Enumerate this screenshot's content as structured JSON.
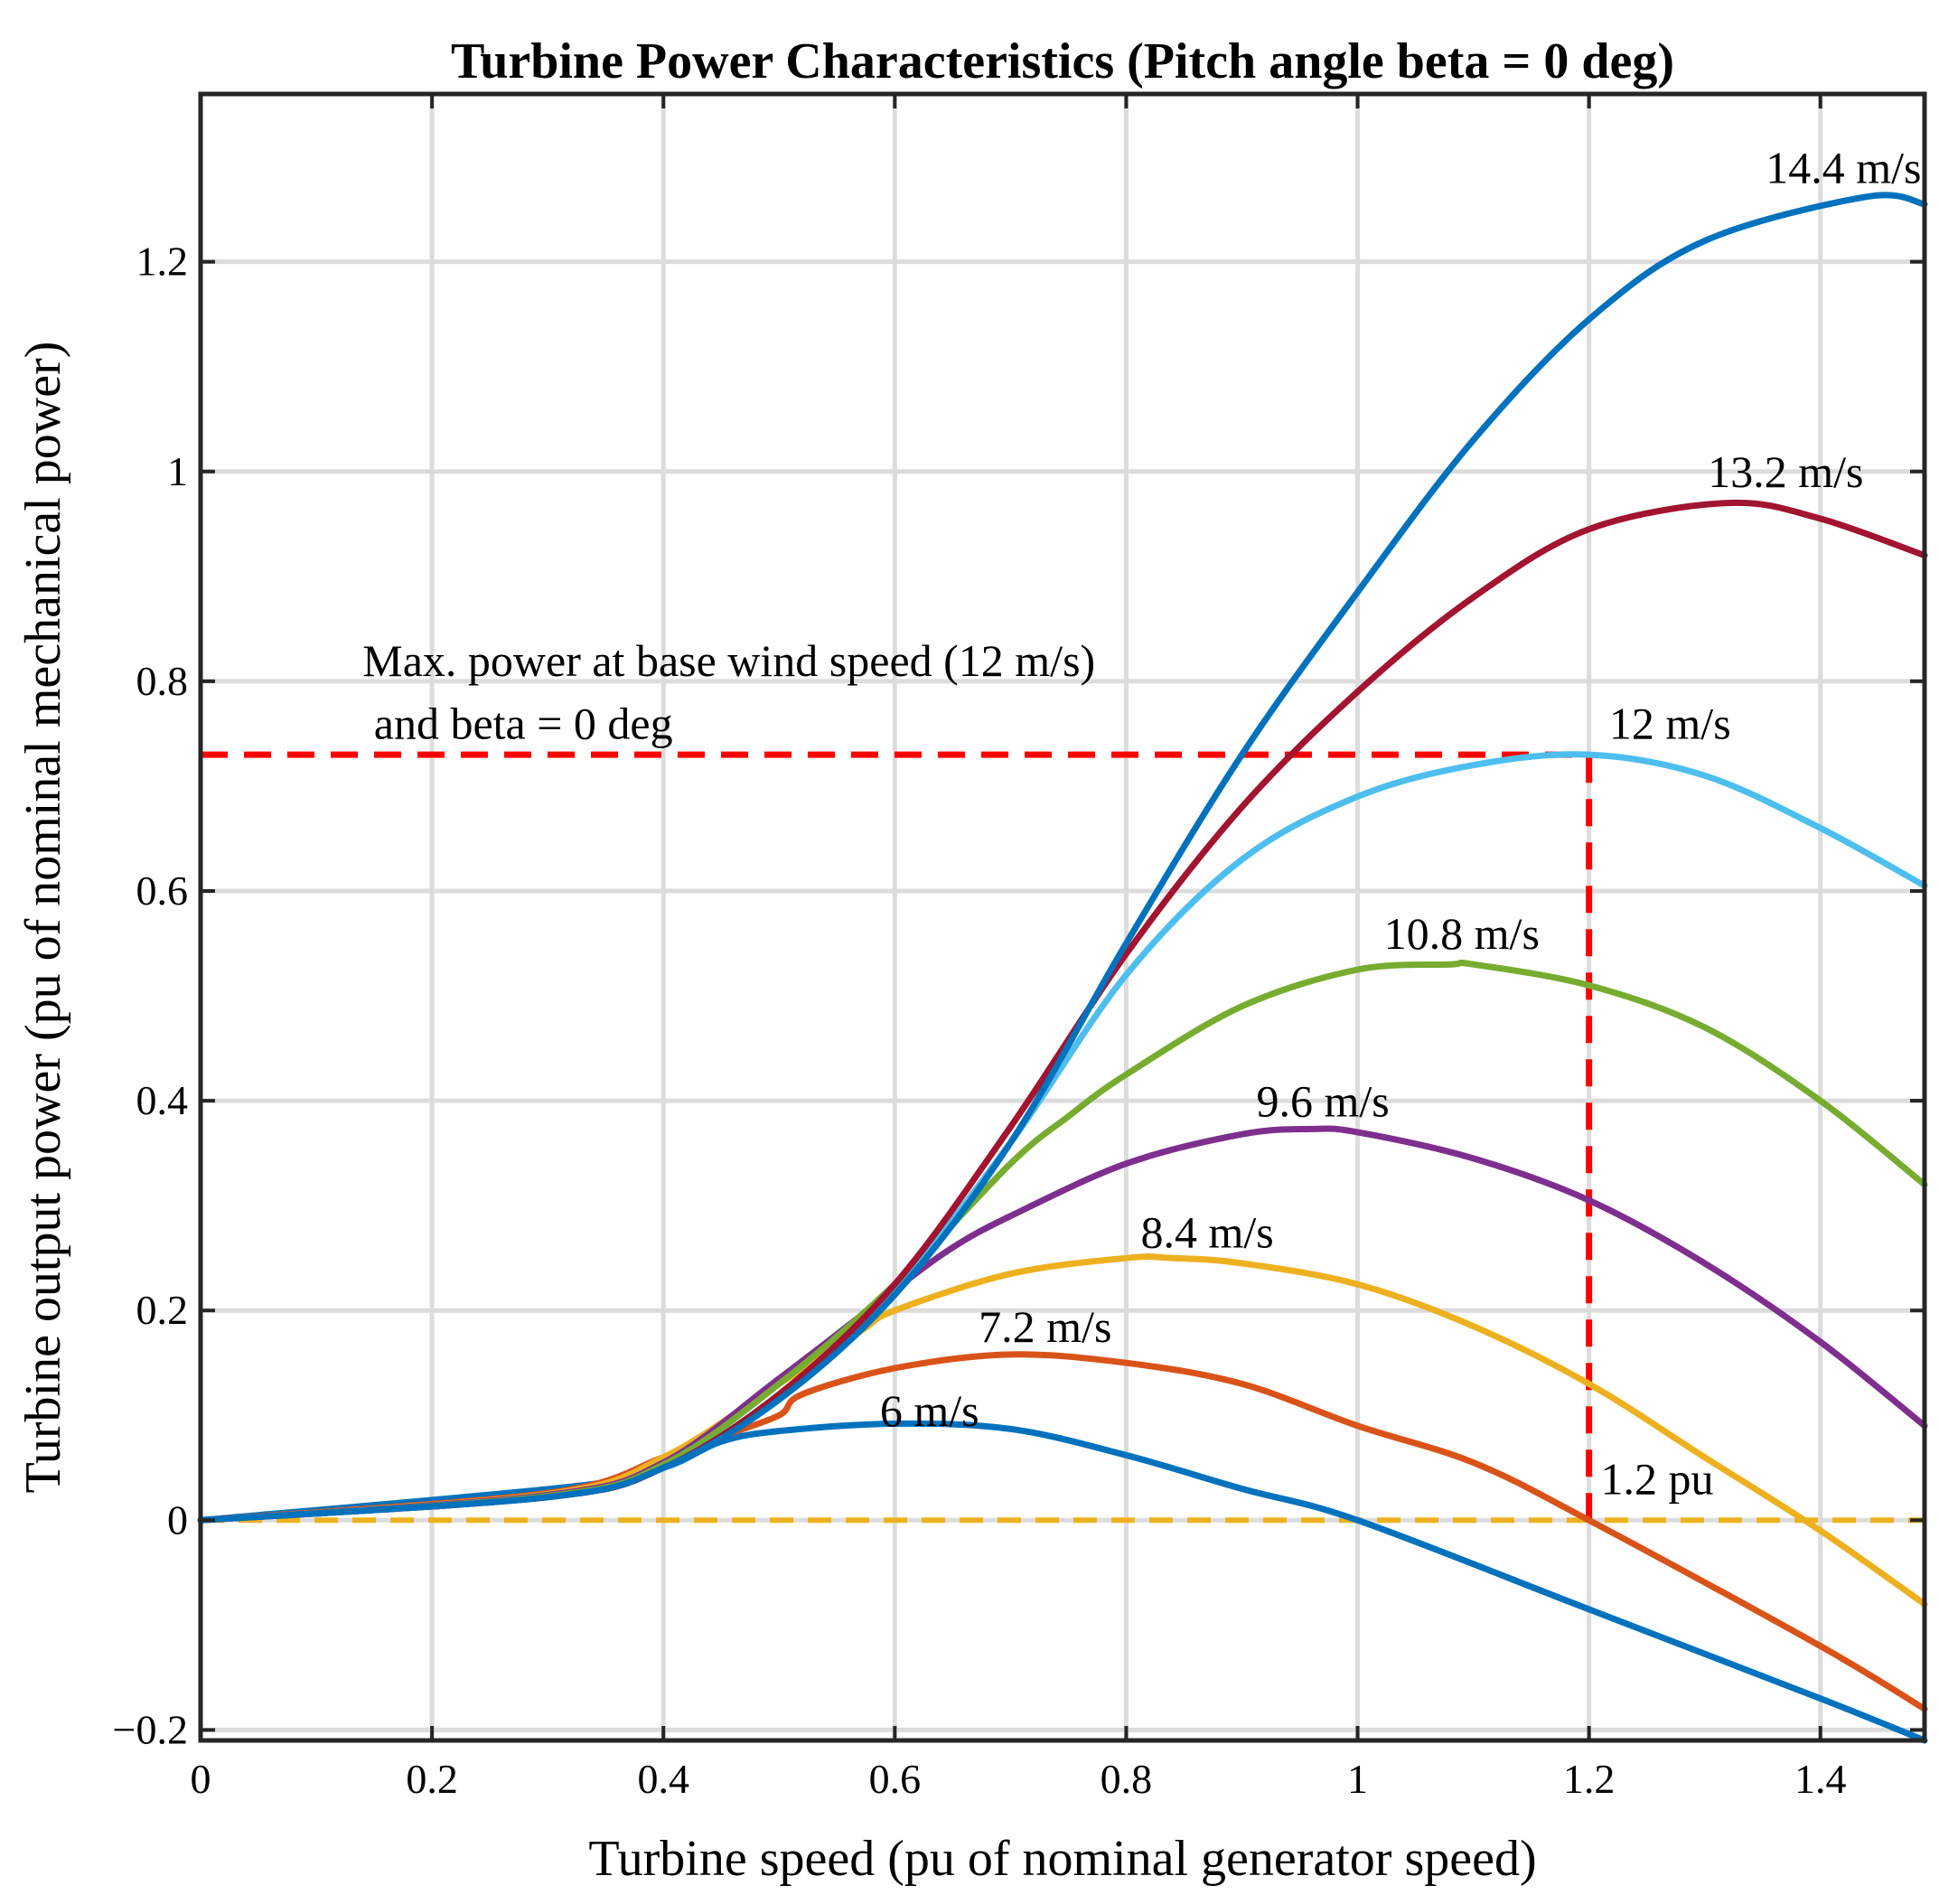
{
  "chart_data": {
    "type": "line",
    "title": "Turbine Power Characteristics (Pitch angle beta = 0 deg)",
    "xlabel": "Turbine speed (pu of nominal generator speed)",
    "ylabel": "Turbine output power (pu of nominal mechanical power)",
    "xlim": [
      0,
      1.49
    ],
    "ylim": [
      -0.21,
      1.36
    ],
    "x_ticks": [
      0,
      0.2,
      0.4,
      0.6,
      0.8,
      1,
      1.2,
      1.4
    ],
    "x_tick_labels": [
      "0",
      "0.2",
      "0.4",
      "0.6",
      "0.8",
      "1",
      "1.2",
      "1.4"
    ],
    "y_ticks": [
      -0.2,
      0,
      0.2,
      0.4,
      0.6,
      0.8,
      1,
      1.2
    ],
    "y_tick_labels": [
      "−0.2",
      "0",
      "0.2",
      "0.4",
      "0.6",
      "0.8",
      "1",
      "1.2"
    ],
    "grid": true,
    "series": [
      {
        "name": "6 m/s",
        "color": "#0072BD",
        "x": [
          0,
          0.32,
          0.4,
          0.45,
          0.5,
          0.6,
          0.7,
          0.8,
          0.9,
          1.0,
          1.2,
          1.4,
          1.49
        ],
        "y": [
          0,
          0.032,
          0.05,
          0.075,
          0.085,
          0.092,
          0.087,
          0.062,
          0.03,
          0.0,
          -0.085,
          -0.17,
          -0.21
        ]
      },
      {
        "name": "7.2 m/s",
        "color": "#D95319",
        "x": [
          0,
          0.3,
          0.4,
          0.45,
          0.5,
          0.52,
          0.6,
          0.7,
          0.8,
          0.9,
          1.0,
          1.1,
          1.2,
          1.4,
          1.49
        ],
        "y": [
          0,
          0.026,
          0.06,
          0.08,
          0.1,
          0.12,
          0.145,
          0.158,
          0.15,
          0.13,
          0.09,
          0.055,
          0.0,
          -0.12,
          -0.18
        ]
      },
      {
        "name": "8.4 m/s",
        "color": "#EDB120",
        "x": [
          0,
          0.3,
          0.4,
          0.5,
          0.57,
          0.6,
          0.7,
          0.8,
          0.84,
          0.9,
          1.0,
          1.1,
          1.2,
          1.3,
          1.4,
          1.49
        ],
        "y": [
          0,
          0.025,
          0.06,
          0.13,
          0.18,
          0.2,
          0.235,
          0.25,
          0.25,
          0.245,
          0.225,
          0.185,
          0.13,
          0.06,
          -0.01,
          -0.08
        ]
      },
      {
        "name": "9.6 m/s",
        "color": "#7E2F8E",
        "x": [
          0,
          0.3,
          0.4,
          0.5,
          0.6,
          0.65,
          0.7,
          0.8,
          0.9,
          0.96,
          1.0,
          1.1,
          1.2,
          1.3,
          1.4,
          1.49
        ],
        "y": [
          0,
          0.024,
          0.055,
          0.135,
          0.22,
          0.26,
          0.29,
          0.34,
          0.368,
          0.373,
          0.37,
          0.345,
          0.305,
          0.245,
          0.17,
          0.09
        ]
      },
      {
        "name": "10.8 m/s",
        "color": "#77AC30",
        "x": [
          0,
          0.3,
          0.4,
          0.5,
          0.6,
          0.7,
          0.75,
          0.8,
          0.9,
          1.0,
          1.08,
          1.1,
          1.2,
          1.3,
          1.4,
          1.49
        ],
        "y": [
          0,
          0.023,
          0.053,
          0.13,
          0.225,
          0.34,
          0.385,
          0.425,
          0.49,
          0.525,
          0.53,
          0.53,
          0.51,
          0.47,
          0.4,
          0.32
        ]
      },
      {
        "name": "12 m/s",
        "color": "#4DBEEE",
        "x": [
          0,
          0.3,
          0.4,
          0.5,
          0.6,
          0.7,
          0.8,
          0.9,
          1.0,
          1.1,
          1.2,
          1.3,
          1.4,
          1.49
        ],
        "y": [
          0,
          0.022,
          0.05,
          0.12,
          0.22,
          0.36,
          0.52,
          0.63,
          0.69,
          0.72,
          0.73,
          0.71,
          0.66,
          0.605
        ]
      },
      {
        "name": "13.2 m/s",
        "color": "#A2142F",
        "x": [
          0,
          0.3,
          0.4,
          0.5,
          0.6,
          0.7,
          0.8,
          0.9,
          1.0,
          1.1,
          1.2,
          1.32,
          1.4,
          1.49
        ],
        "y": [
          0,
          0.022,
          0.05,
          0.12,
          0.225,
          0.375,
          0.54,
          0.68,
          0.79,
          0.88,
          0.945,
          0.97,
          0.955,
          0.92
        ]
      },
      {
        "name": "14.4 m/s",
        "color": "#0072BD",
        "x": [
          0,
          0.3,
          0.4,
          0.5,
          0.6,
          0.7,
          0.8,
          0.9,
          1.0,
          1.1,
          1.2,
          1.3,
          1.44,
          1.49
        ],
        "y": [
          0,
          0.022,
          0.05,
          0.115,
          0.215,
          0.36,
          0.55,
          0.73,
          0.885,
          1.03,
          1.145,
          1.22,
          1.262,
          1.255
        ]
      }
    ],
    "curve_labels": [
      {
        "text": "6 m/s",
        "x": 0.63,
        "y": 0.09
      },
      {
        "text": "7.2 m/s",
        "x": 0.73,
        "y": 0.17
      },
      {
        "text": "8.4 m/s",
        "x": 0.87,
        "y": 0.26
      },
      {
        "text": "9.6 m/s",
        "x": 0.97,
        "y": 0.385
      },
      {
        "text": "10.8 m/s",
        "x": 1.09,
        "y": 0.545
      },
      {
        "text": "12 m/s",
        "x": 1.27,
        "y": 0.745
      },
      {
        "text": "13.2 m/s",
        "x": 1.37,
        "y": 0.985
      },
      {
        "text": "14.4 m/s",
        "x": 1.42,
        "y": 1.275
      }
    ],
    "max_power_line": {
      "color": "#FF0000",
      "y": 0.73,
      "x_start": 0,
      "x_end": 1.2
    },
    "base_speed_line": {
      "color": "#FF0000",
      "x": 1.2,
      "y_start": 0,
      "y_end": 0.73
    },
    "zero_line": {
      "color": "#EDB120",
      "y": 0
    },
    "annotations": {
      "max_power_line1": {
        "text": "Max. power at base wind speed (12 m/s)",
        "x": 0.14,
        "y": 0.805
      },
      "max_power_line2": {
        "text": " and beta = 0 deg",
        "x": 0.14,
        "y": 0.745
      },
      "base_speed": {
        "text": "1.2 pu",
        "x": 1.21,
        "y": 0.025
      }
    }
  }
}
